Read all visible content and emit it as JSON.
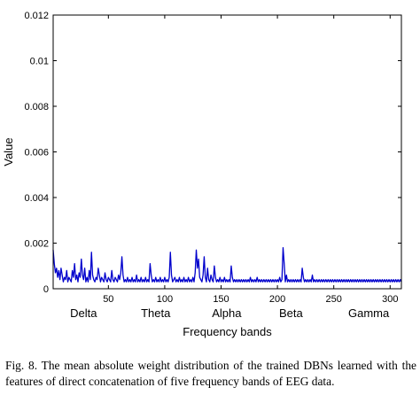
{
  "chart_data": {
    "type": "line",
    "title": "",
    "xlabel": "Frequency bands",
    "ylabel": "Value",
    "xlim": [
      1,
      310
    ],
    "ylim": [
      0,
      0.012
    ],
    "x_ticks": [
      50,
      100,
      150,
      200,
      250,
      300
    ],
    "y_ticks": [
      0,
      0.002,
      0.004,
      0.006,
      0.008,
      0.01,
      0.012
    ],
    "y_tick_labels": [
      "0",
      "0.002",
      "0.004",
      "0.006",
      "0.008",
      "0.01",
      "0.012"
    ],
    "band_labels": [
      {
        "name": "Delta",
        "center": 28
      },
      {
        "name": "Theta",
        "center": 92
      },
      {
        "name": "Alpha",
        "center": 155
      },
      {
        "name": "Beta",
        "center": 212
      },
      {
        "name": "Gamma",
        "center": 281
      }
    ],
    "line_color": "#0000cc",
    "grid": false,
    "series": [
      {
        "x": [
          1,
          2,
          3,
          4,
          5,
          6,
          7,
          8,
          9,
          10,
          11,
          12,
          13,
          14,
          15,
          16,
          17,
          18,
          19,
          20,
          21,
          22,
          23,
          24,
          25,
          26,
          27,
          28,
          29,
          30,
          31,
          32,
          33,
          34,
          35,
          36,
          37,
          38,
          39,
          40,
          41,
          42,
          43,
          44,
          45,
          46,
          47,
          48,
          49,
          50,
          51,
          52,
          53,
          54,
          55,
          56,
          57,
          58,
          59,
          60,
          61,
          62,
          63,
          64,
          65,
          66,
          67,
          68,
          69,
          70,
          71,
          72,
          73,
          74,
          75,
          76,
          77,
          78,
          79,
          80,
          81,
          82,
          83,
          84,
          85,
          86,
          87,
          88,
          89,
          90,
          91,
          92,
          93,
          94,
          95,
          96,
          97,
          98,
          99,
          100,
          101,
          102,
          103,
          104,
          105,
          106,
          107,
          108,
          109,
          110,
          111,
          112,
          113,
          114,
          115,
          116,
          117,
          118,
          119,
          120,
          121,
          122,
          123,
          124,
          125,
          126,
          127,
          128,
          129,
          130,
          131,
          132,
          133,
          134,
          135,
          136,
          137,
          138,
          139,
          140,
          141,
          142,
          143,
          144,
          145,
          146,
          147,
          148,
          149,
          150,
          151,
          152,
          153,
          154,
          155,
          156,
          157,
          158,
          159,
          160,
          161,
          162,
          163,
          164,
          165,
          166,
          167,
          168,
          169,
          170,
          171,
          172,
          173,
          174,
          175,
          176,
          177,
          178,
          179,
          180,
          181,
          182,
          183,
          184,
          185,
          186,
          187,
          188,
          189,
          190,
          191,
          192,
          193,
          194,
          195,
          196,
          197,
          198,
          199,
          200,
          201,
          202,
          203,
          204,
          205,
          206,
          207,
          208,
          209,
          210,
          211,
          212,
          213,
          214,
          215,
          216,
          217,
          218,
          219,
          220,
          221,
          222,
          223,
          224,
          225,
          226,
          227,
          228,
          229,
          230,
          231,
          232,
          233,
          234,
          235,
          236,
          237,
          238,
          239,
          240,
          241,
          242,
          243,
          244,
          245,
          246,
          247,
          248,
          249,
          250,
          251,
          252,
          253,
          254,
          255,
          256,
          257,
          258,
          259,
          260,
          261,
          262,
          263,
          264,
          265,
          266,
          267,
          268,
          269,
          270,
          271,
          272,
          273,
          274,
          275,
          276,
          277,
          278,
          279,
          280,
          281,
          282,
          283,
          284,
          285,
          286,
          287,
          288,
          289,
          290,
          291,
          292,
          293,
          294,
          295,
          296,
          297,
          298,
          299,
          300,
          301,
          302,
          303,
          304,
          305,
          306,
          307,
          308,
          309,
          310
        ],
        "values": [
          0.0017,
          0.0011,
          0.0007,
          0.0009,
          0.0005,
          0.0008,
          0.0004,
          0.0009,
          0.0006,
          0.0003,
          0.0005,
          0.0004,
          0.0008,
          0.0003,
          0.0005,
          0.0004,
          0.0003,
          0.0008,
          0.0005,
          0.0011,
          0.0004,
          0.0006,
          0.0003,
          0.0007,
          0.0005,
          0.0013,
          0.0006,
          0.0004,
          0.0009,
          0.0003,
          0.0005,
          0.0003,
          0.0008,
          0.0004,
          0.0016,
          0.0006,
          0.0004,
          0.0003,
          0.0005,
          0.0004,
          0.0009,
          0.0006,
          0.0003,
          0.0005,
          0.0004,
          0.0003,
          0.0007,
          0.0004,
          0.0003,
          0.0005,
          0.0004,
          0.0003,
          0.0008,
          0.0004,
          0.0003,
          0.0005,
          0.0004,
          0.0003,
          0.0006,
          0.0004,
          0.0007,
          0.0014,
          0.0006,
          0.0003,
          0.0004,
          0.0003,
          0.0005,
          0.0003,
          0.0004,
          0.0003,
          0.0005,
          0.0003,
          0.0004,
          0.0003,
          0.0006,
          0.0003,
          0.0004,
          0.0003,
          0.0005,
          0.0003,
          0.0004,
          0.0003,
          0.0005,
          0.0003,
          0.0004,
          0.0003,
          0.0011,
          0.0006,
          0.0003,
          0.0004,
          0.0003,
          0.0005,
          0.0003,
          0.0004,
          0.0003,
          0.0005,
          0.0003,
          0.0004,
          0.0003,
          0.0005,
          0.0003,
          0.0004,
          0.0003,
          0.0005,
          0.0016,
          0.0006,
          0.0003,
          0.0004,
          0.0005,
          0.0003,
          0.0004,
          0.0003,
          0.0005,
          0.0003,
          0.0004,
          0.0003,
          0.0005,
          0.0003,
          0.0004,
          0.0003,
          0.0005,
          0.0003,
          0.0004,
          0.0003,
          0.0005,
          0.0003,
          0.0007,
          0.0017,
          0.0009,
          0.0013,
          0.0005,
          0.0004,
          0.0003,
          0.0006,
          0.0014,
          0.0005,
          0.0003,
          0.0009,
          0.0004,
          0.0003,
          0.0006,
          0.0004,
          0.0003,
          0.001,
          0.0005,
          0.0003,
          0.0004,
          0.0003,
          0.0005,
          0.0003,
          0.0004,
          0.0003,
          0.0005,
          0.0003,
          0.0004,
          0.0003,
          0.0004,
          0.0003,
          0.001,
          0.0005,
          0.0003,
          0.0004,
          0.0003,
          0.0004,
          0.0003,
          0.0004,
          0.0003,
          0.0004,
          0.0003,
          0.0004,
          0.0003,
          0.0004,
          0.0003,
          0.0004,
          0.0003,
          0.0005,
          0.0003,
          0.0004,
          0.0003,
          0.0004,
          0.0003,
          0.0005,
          0.0003,
          0.0004,
          0.0003,
          0.0004,
          0.0003,
          0.0004,
          0.0003,
          0.0004,
          0.0003,
          0.0004,
          0.0003,
          0.0004,
          0.0003,
          0.0004,
          0.0003,
          0.0004,
          0.0003,
          0.0004,
          0.0003,
          0.0005,
          0.0003,
          0.0004,
          0.0018,
          0.0011,
          0.0003,
          0.0006,
          0.0003,
          0.0004,
          0.0003,
          0.0004,
          0.0003,
          0.0004,
          0.0003,
          0.0004,
          0.0003,
          0.0004,
          0.0003,
          0.0004,
          0.0003,
          0.0009,
          0.0005,
          0.0003,
          0.0004,
          0.0003,
          0.0004,
          0.0003,
          0.0004,
          0.0003,
          0.0006,
          0.0003,
          0.0004,
          0.0003,
          0.0004,
          0.0003,
          0.0004,
          0.0003,
          0.0004,
          0.0003,
          0.0004,
          0.0003,
          0.0004,
          0.0003,
          0.0004,
          0.0003,
          0.0004,
          0.0003,
          0.0004,
          0.0003,
          0.0004,
          0.0003,
          0.0004,
          0.0003,
          0.0004,
          0.0003,
          0.0004,
          0.0003,
          0.0004,
          0.0003,
          0.0004,
          0.0003,
          0.0004,
          0.0003,
          0.0004,
          0.0003,
          0.0004,
          0.0003,
          0.0004,
          0.0003,
          0.0004,
          0.0003,
          0.0004,
          0.0003,
          0.0004,
          0.0003,
          0.0004,
          0.0003,
          0.0004,
          0.0003,
          0.0004,
          0.0003,
          0.0004,
          0.0003,
          0.0004,
          0.0003,
          0.0004,
          0.0003,
          0.0004,
          0.0003,
          0.0004,
          0.0003,
          0.0004,
          0.0003,
          0.0004,
          0.0003,
          0.0004,
          0.0003,
          0.0004,
          0.0003,
          0.0004,
          0.0003,
          0.0004,
          0.0003,
          0.0004,
          0.0003,
          0.0004,
          0.0003,
          0.0004,
          0.0003
        ]
      }
    ]
  },
  "caption": {
    "text": "Fig. 8.   The mean absolute weight distribution of the trained DBNs learned with the features of direct concatenation of five frequency bands of EEG data."
  }
}
